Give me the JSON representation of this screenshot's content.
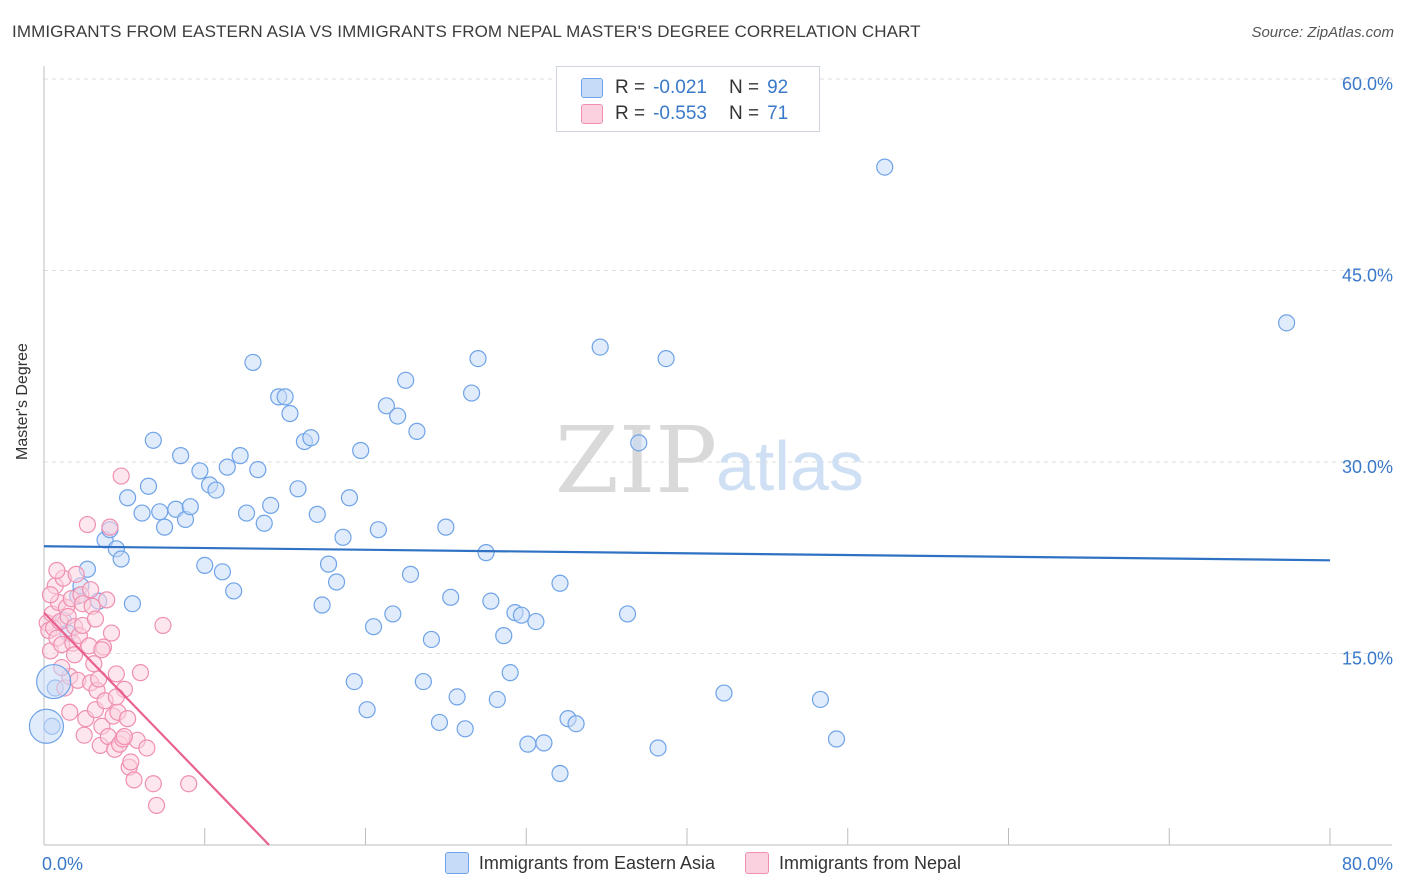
{
  "title": "IMMIGRANTS FROM EASTERN ASIA VS IMMIGRANTS FROM NEPAL MASTER'S DEGREE CORRELATION CHART",
  "source": "Source: ZipAtlas.com",
  "watermark": {
    "zip": "ZIP",
    "atlas": "atlas"
  },
  "stats": [
    {
      "r_label": "R =",
      "r_value": "-0.021",
      "n_label": "N =",
      "n_value": "92",
      "color": "#6fa3e8"
    },
    {
      "r_label": "R =",
      "r_value": "-0.553",
      "n_label": "N =",
      "n_value": "71",
      "color": "#f08fb0"
    }
  ],
  "legend": [
    {
      "label": "Immigrants from Eastern Asia",
      "color": "#6fa3e8"
    },
    {
      "label": "Immigrants from Nepal",
      "color": "#f08fb0"
    }
  ],
  "chart_data": {
    "type": "scatter",
    "ylabel": "Master's Degree",
    "xlim": [
      0,
      80
    ],
    "ylim": [
      0,
      60
    ],
    "x_tick_labels": [
      "0.0%",
      "80.0%"
    ],
    "y_ticks": [
      15,
      30,
      45,
      60
    ],
    "y_tick_labels": [
      "15.0%",
      "30.0%",
      "45.0%",
      "60.0%"
    ],
    "grid": true,
    "series": [
      {
        "name": "Immigrants from Eastern Asia",
        "color": "#6fa3e8",
        "trend": {
          "x": [
            0,
            80
          ],
          "y": [
            23.4,
            22.3
          ]
        },
        "points": [
          [
            0.5,
            9.3
          ],
          [
            0.7,
            12.3
          ],
          [
            1.2,
            17.6
          ],
          [
            1.5,
            16.6
          ],
          [
            2.1,
            19.5
          ],
          [
            2.3,
            20.3
          ],
          [
            2.7,
            21.6
          ],
          [
            3.4,
            19.1
          ],
          [
            3.8,
            23.9
          ],
          [
            4.1,
            24.7
          ],
          [
            4.5,
            23.2
          ],
          [
            4.8,
            22.4
          ],
          [
            5.2,
            27.2
          ],
          [
            5.5,
            18.9
          ],
          [
            6.1,
            26.0
          ],
          [
            6.5,
            28.1
          ],
          [
            6.8,
            31.7
          ],
          [
            7.2,
            26.1
          ],
          [
            7.5,
            24.9
          ],
          [
            8.2,
            26.3
          ],
          [
            8.5,
            30.5
          ],
          [
            8.8,
            25.5
          ],
          [
            9.1,
            26.5
          ],
          [
            9.7,
            29.3
          ],
          [
            10.0,
            21.9
          ],
          [
            10.3,
            28.2
          ],
          [
            10.7,
            27.8
          ],
          [
            11.1,
            21.4
          ],
          [
            11.4,
            29.6
          ],
          [
            11.8,
            19.9
          ],
          [
            12.2,
            30.5
          ],
          [
            12.6,
            26.0
          ],
          [
            13.0,
            37.8
          ],
          [
            13.3,
            29.4
          ],
          [
            13.7,
            25.2
          ],
          [
            14.1,
            26.6
          ],
          [
            14.6,
            35.1
          ],
          [
            15.0,
            35.1
          ],
          [
            15.3,
            33.8
          ],
          [
            15.8,
            27.9
          ],
          [
            16.2,
            31.6
          ],
          [
            16.6,
            31.9
          ],
          [
            17.0,
            25.9
          ],
          [
            17.3,
            18.8
          ],
          [
            17.7,
            22.0
          ],
          [
            18.2,
            20.6
          ],
          [
            18.6,
            24.1
          ],
          [
            19.0,
            27.2
          ],
          [
            19.3,
            12.8
          ],
          [
            19.7,
            30.9
          ],
          [
            20.1,
            10.6
          ],
          [
            20.5,
            17.1
          ],
          [
            20.8,
            24.7
          ],
          [
            21.3,
            34.4
          ],
          [
            21.7,
            18.1
          ],
          [
            22.0,
            33.6
          ],
          [
            22.5,
            36.4
          ],
          [
            22.8,
            21.2
          ],
          [
            23.2,
            32.4
          ],
          [
            23.6,
            12.8
          ],
          [
            24.1,
            16.1
          ],
          [
            24.6,
            9.6
          ],
          [
            25.0,
            24.9
          ],
          [
            25.3,
            19.4
          ],
          [
            25.7,
            11.6
          ],
          [
            26.2,
            9.1
          ],
          [
            26.6,
            35.4
          ],
          [
            27.0,
            38.1
          ],
          [
            27.5,
            22.9
          ],
          [
            27.8,
            19.1
          ],
          [
            28.2,
            11.4
          ],
          [
            28.6,
            16.4
          ],
          [
            29.0,
            13.5
          ],
          [
            29.3,
            18.2
          ],
          [
            29.7,
            18.0
          ],
          [
            30.1,
            7.9
          ],
          [
            30.6,
            17.5
          ],
          [
            31.1,
            8.0
          ],
          [
            32.1,
            5.6
          ],
          [
            32.1,
            20.5
          ],
          [
            32.6,
            9.9
          ],
          [
            33.1,
            9.5
          ],
          [
            34.6,
            39.0
          ],
          [
            36.3,
            18.1
          ],
          [
            37.0,
            31.5
          ],
          [
            38.2,
            7.6
          ],
          [
            38.7,
            38.1
          ],
          [
            42.3,
            11.9
          ],
          [
            48.3,
            11.4
          ],
          [
            49.3,
            8.3
          ],
          [
            52.3,
            53.1
          ],
          [
            77.3,
            40.9
          ]
        ]
      },
      {
        "name": "Immigrants from Nepal",
        "color": "#f08fb0",
        "trend": {
          "x": [
            0,
            14
          ],
          "y": [
            18.2,
            0
          ]
        },
        "points": [
          [
            0.2,
            17.4
          ],
          [
            0.3,
            16.8
          ],
          [
            0.4,
            15.2
          ],
          [
            0.5,
            18.1
          ],
          [
            0.6,
            17.0
          ],
          [
            0.7,
            20.3
          ],
          [
            0.8,
            16.2
          ],
          [
            0.9,
            19.0
          ],
          [
            1.0,
            17.5
          ],
          [
            1.1,
            15.7
          ],
          [
            1.2,
            20.9
          ],
          [
            1.3,
            12.3
          ],
          [
            1.4,
            18.6
          ],
          [
            1.5,
            17.9
          ],
          [
            1.6,
            13.2
          ],
          [
            1.7,
            19.3
          ],
          [
            1.8,
            15.8
          ],
          [
            1.9,
            17.1
          ],
          [
            2.0,
            21.2
          ],
          [
            2.1,
            12.9
          ],
          [
            2.2,
            16.4
          ],
          [
            2.3,
            19.6
          ],
          [
            2.4,
            18.9
          ],
          [
            2.5,
            8.6
          ],
          [
            2.6,
            9.9
          ],
          [
            2.7,
            25.1
          ],
          [
            2.8,
            15.6
          ],
          [
            2.9,
            12.7
          ],
          [
            3.0,
            18.7
          ],
          [
            3.1,
            14.2
          ],
          [
            3.2,
            10.6
          ],
          [
            3.3,
            12.1
          ],
          [
            3.4,
            13.0
          ],
          [
            3.5,
            7.8
          ],
          [
            3.6,
            9.3
          ],
          [
            3.7,
            15.5
          ],
          [
            3.8,
            11.3
          ],
          [
            3.9,
            19.2
          ],
          [
            4.0,
            8.5
          ],
          [
            4.1,
            24.9
          ],
          [
            4.2,
            16.6
          ],
          [
            4.3,
            10.1
          ],
          [
            4.4,
            7.5
          ],
          [
            4.5,
            13.4
          ],
          [
            4.6,
            10.4
          ],
          [
            4.7,
            7.9
          ],
          [
            4.8,
            28.9
          ],
          [
            4.9,
            8.3
          ],
          [
            5.0,
            12.2
          ],
          [
            5.2,
            9.9
          ],
          [
            5.3,
            6.1
          ],
          [
            5.4,
            6.5
          ],
          [
            5.6,
            5.1
          ],
          [
            5.8,
            8.2
          ],
          [
            6.0,
            13.5
          ],
          [
            6.4,
            7.6
          ],
          [
            6.8,
            4.8
          ],
          [
            7.0,
            3.1
          ],
          [
            7.4,
            17.2
          ],
          [
            9.0,
            4.8
          ],
          [
            0.8,
            21.5
          ],
          [
            1.9,
            14.9
          ],
          [
            2.4,
            17.2
          ],
          [
            3.2,
            17.7
          ],
          [
            3.6,
            15.3
          ],
          [
            1.1,
            13.9
          ],
          [
            2.9,
            20.0
          ],
          [
            0.4,
            19.6
          ],
          [
            4.5,
            11.6
          ],
          [
            5.0,
            8.5
          ],
          [
            1.6,
            10.4
          ]
        ]
      }
    ],
    "big_markers": [
      {
        "series": 0,
        "x": 0.15,
        "y": 9.3
      },
      {
        "series": 0,
        "x": 0.6,
        "y": 12.8
      }
    ]
  }
}
